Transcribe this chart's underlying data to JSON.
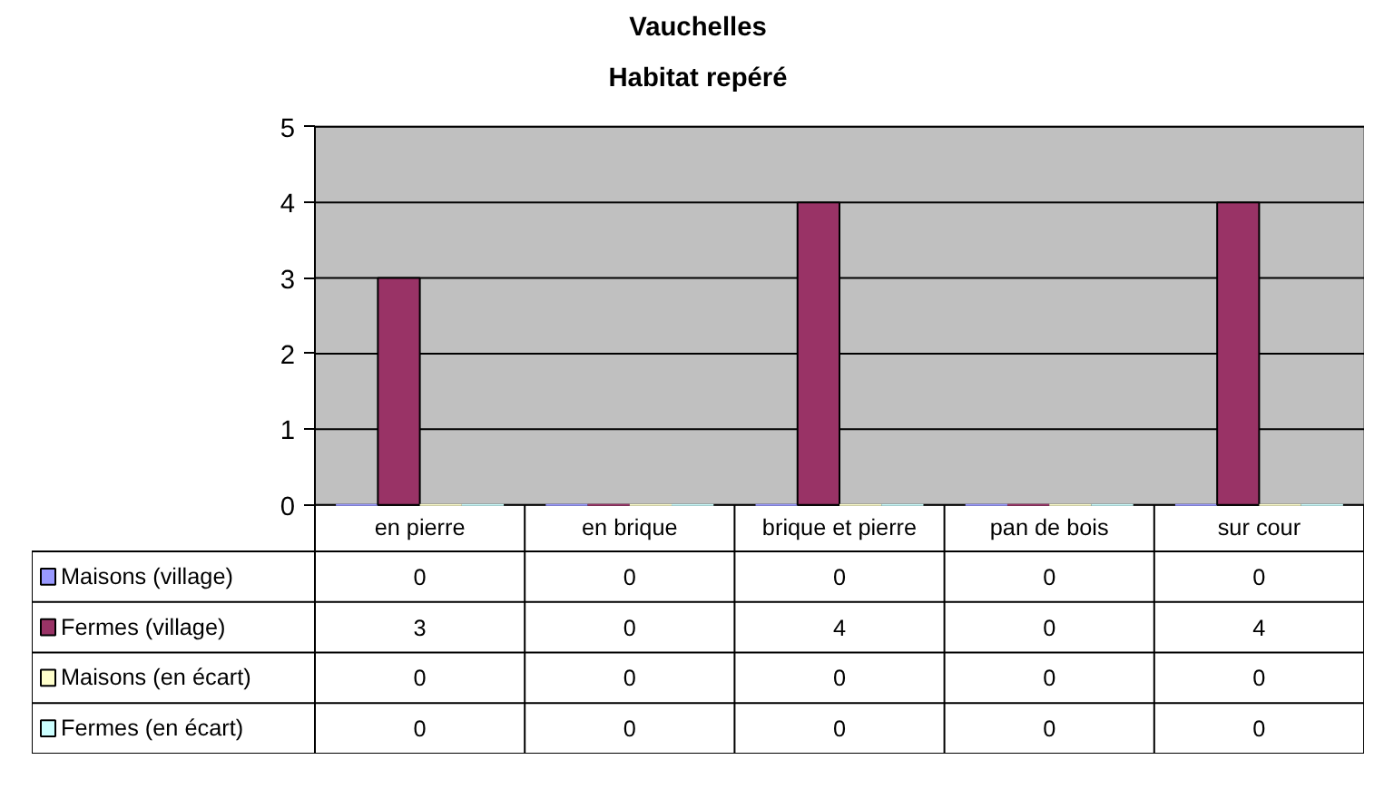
{
  "chart_data": {
    "type": "bar",
    "title": "Vauchelles",
    "subtitle": "Habitat repéré",
    "categories": [
      "en pierre",
      "en brique",
      "brique et pierre",
      "pan de bois",
      "sur cour"
    ],
    "series": [
      {
        "name": "Maisons (village)",
        "color": "#9999ff",
        "values": [
          0,
          0,
          0,
          0,
          0
        ]
      },
      {
        "name": "Fermes (village)",
        "color": "#993366",
        "values": [
          3,
          0,
          4,
          0,
          4
        ]
      },
      {
        "name": "Maisons (en écart)",
        "color": "#ffffcc",
        "values": [
          0,
          0,
          0,
          0,
          0
        ]
      },
      {
        "name": "Fermes (en écart)",
        "color": "#ccffff",
        "values": [
          0,
          0,
          0,
          0,
          0
        ]
      }
    ],
    "ylim": [
      0,
      5
    ],
    "yticks": [
      0,
      1,
      2,
      3,
      4,
      5
    ],
    "grid": "y",
    "legend": "bottom",
    "data_labels": true
  }
}
